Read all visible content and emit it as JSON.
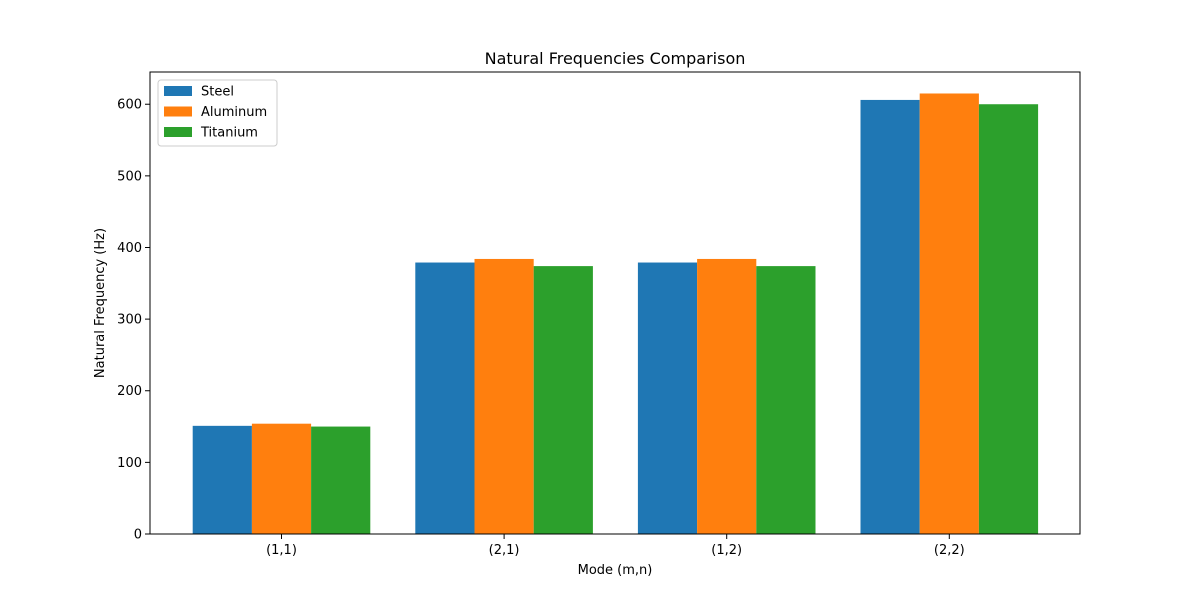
{
  "chart_data": {
    "type": "bar",
    "title": "Natural Frequencies Comparison",
    "xlabel": "Mode (m,n)",
    "ylabel": "Natural Frequency (Hz)",
    "categories": [
      "(1,1)",
      "(2,1)",
      "(1,2)",
      "(2,2)"
    ],
    "series": [
      {
        "name": "Steel",
        "color": "#1f77b4",
        "values": [
          151,
          379,
          379,
          606
        ]
      },
      {
        "name": "Aluminum",
        "color": "#ff7f0e",
        "values": [
          154,
          384,
          384,
          615
        ]
      },
      {
        "name": "Titanium",
        "color": "#2ca02c",
        "values": [
          150,
          374,
          374,
          600
        ]
      }
    ],
    "ylim": [
      0,
      645
    ],
    "yticks": [
      0,
      100,
      200,
      300,
      400,
      500,
      600
    ],
    "grid": false,
    "legend_position": "top-left"
  }
}
